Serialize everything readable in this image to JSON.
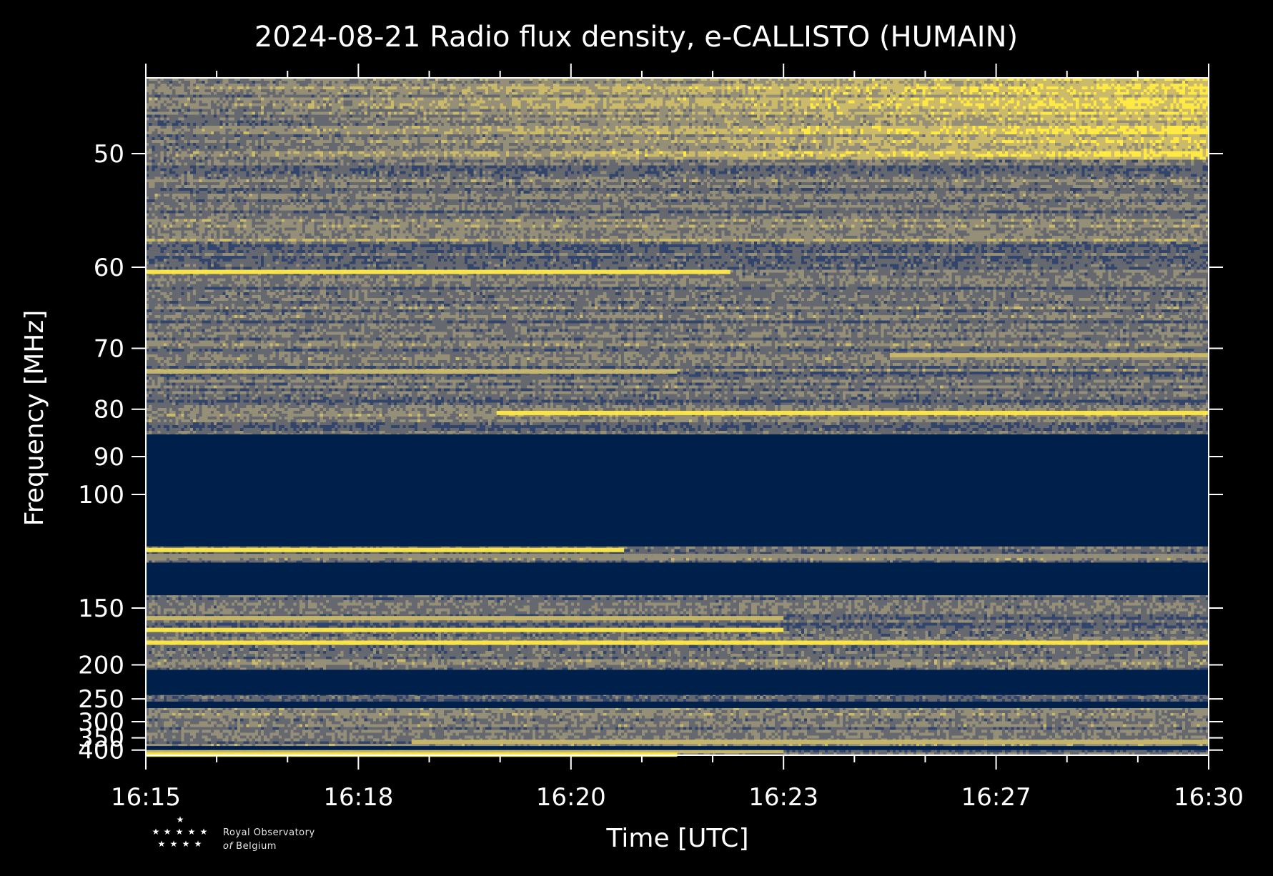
{
  "chart_data": {
    "type": "heatmap",
    "title": "2024-08-21 Radio flux density, e-CALLISTO (HUMAIN)",
    "xlabel": "Time [UTC]",
    "ylabel": "Frequency [MHz]",
    "x_ticks": [
      "16:15",
      "16:18",
      "16:20",
      "16:23",
      "16:27",
      "16:30"
    ],
    "y_ticks": [
      50,
      60,
      70,
      80,
      90,
      100,
      150,
      200,
      250,
      300,
      350,
      400
    ],
    "y_scale": "reciprocal",
    "ylim": [
      45,
      426
    ],
    "xlim_minutes": [
      0,
      15
    ],
    "colormap": [
      "#00204c",
      "#31446b",
      "#666870",
      "#958f78",
      "#cbba69",
      "#ffe945"
    ],
    "masked_bands_mhz": [
      [
        85,
        118
      ],
      [
        125,
        142
      ],
      [
        206,
        243
      ],
      [
        255,
        268
      ],
      [
        382,
        400
      ]
    ],
    "bright_lines_mhz": [
      {
        "freq": 60.5,
        "level": 1.0,
        "x_end": 0.55
      },
      {
        "freq": 73.5,
        "level": 0.8,
        "x_end": 0.5
      },
      {
        "freq": 80.7,
        "level": 0.95,
        "x_start": 0.33,
        "x_end": 1.0
      },
      {
        "freq": 71,
        "level": 0.7,
        "x_start": 0.7,
        "x_end": 1.0
      },
      {
        "freq": 119.5,
        "level": 0.95,
        "x_end": 0.45
      },
      {
        "freq": 122,
        "level": 0.6,
        "x_end": 1.0
      },
      {
        "freq": 157,
        "level": 0.7,
        "x_end": 0.6
      },
      {
        "freq": 166,
        "level": 0.9,
        "x_end": 0.6
      },
      {
        "freq": 177,
        "level": 0.95,
        "x_end": 1.0
      },
      {
        "freq": 365,
        "level": 0.7,
        "x_start": 0.25,
        "x_end": 1.0
      },
      {
        "freq": 405,
        "level": 0.85,
        "x_end": 0.6
      },
      {
        "freq": 423,
        "level": 0.95,
        "x_end": 0.5
      }
    ]
  },
  "logo": {
    "line1": "Royal Observatory",
    "line2_italic": "of",
    "line2": "Belgium"
  }
}
